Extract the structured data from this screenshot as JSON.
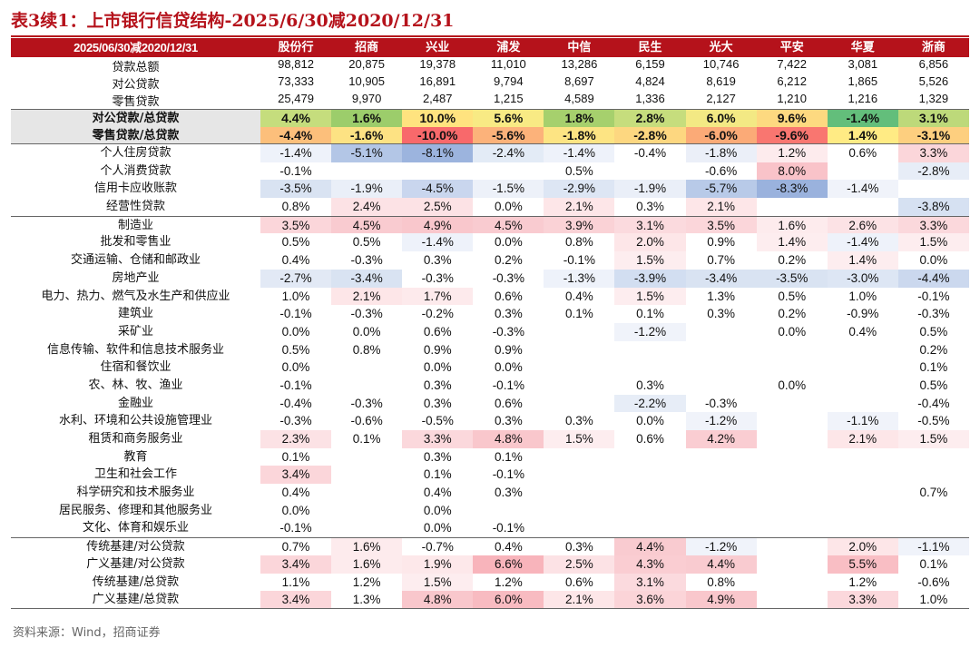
{
  "title": "表3续1：上市银行信贷结构-2025/6/30减2020/12/31",
  "source": "资料来源：Wind，招商证券",
  "header": {
    "label": "2025/06/30减2020/12/31",
    "banks": [
      "股份行",
      "招商",
      "兴业",
      "浦发",
      "中信",
      "民生",
      "光大",
      "平安",
      "华夏",
      "浙商"
    ]
  },
  "colors": {
    "accent": "#b5121b",
    "summary_bg": "#fcf4de",
    "ratio_label_bg": "#e6e6e6"
  },
  "sections": [
    {
      "type": "summary",
      "rows": [
        {
          "label": "贷款总额",
          "values": [
            "98,812",
            "20,875",
            "19,378",
            "11,010",
            "13,286",
            "6,159",
            "10,746",
            "7,422",
            "3,081",
            "6,856"
          ]
        },
        {
          "label": "对公贷款",
          "values": [
            "73,333",
            "10,905",
            "16,891",
            "9,794",
            "8,697",
            "4,824",
            "8,619",
            "6,212",
            "1,865",
            "5,526"
          ]
        },
        {
          "label": "零售贷款",
          "values": [
            "25,479",
            "9,970",
            "2,487",
            "1,215",
            "4,589",
            "1,336",
            "2,127",
            "1,210",
            "1,216",
            "1,329"
          ]
        }
      ]
    },
    {
      "type": "ratio",
      "rows": [
        {
          "label": "对公贷款/总贷款",
          "values": [
            "4.4%",
            "1.6%",
            "10.0%",
            "5.6%",
            "1.8%",
            "2.8%",
            "6.0%",
            "9.6%",
            "-1.4%",
            "3.1%"
          ],
          "colors": [
            "#c5dd7d",
            "#9ccd6b",
            "#ffe37f",
            "#f8ea84",
            "#a6d06d",
            "#c6dd7d",
            "#f3e984",
            "#fdd980",
            "#63be7b",
            "#bdd97a"
          ]
        },
        {
          "label": "零售贷款/总贷款",
          "values": [
            "-4.4%",
            "-1.6%",
            "-10.0%",
            "-5.6%",
            "-1.8%",
            "-2.8%",
            "-6.0%",
            "-9.6%",
            "1.4%",
            "-3.1%"
          ],
          "colors": [
            "#fcbf7b",
            "#fde283",
            "#f8696b",
            "#fcb27a",
            "#fde483",
            "#fdd780",
            "#fbaa77",
            "#f97670",
            "#ffeb84",
            "#fdcf7f"
          ]
        }
      ]
    },
    {
      "type": "body",
      "rows": [
        {
          "label": "个人住房贷款",
          "values": [
            "-1.4%",
            "-5.1%",
            "-8.1%",
            "-2.4%",
            "-1.4%",
            "-0.4%",
            "-1.8%",
            "1.2%",
            "0.6%",
            "3.3%"
          ],
          "colors": [
            "#eef2fa",
            "#b3c6e6",
            "#9cb4de",
            "#e3ebf6",
            "#eef2fa",
            "",
            "#ebeff8",
            "#fdebed",
            "",
            "#fbd6da"
          ]
        },
        {
          "label": "个人消费贷款",
          "values": [
            "-0.1%",
            "",
            "",
            "",
            "0.5%",
            "",
            "-0.6%",
            "8.0%",
            "",
            "-2.8%"
          ],
          "colors": [
            "",
            "",
            "",
            "",
            "",
            "",
            "",
            "#f9c3c9",
            "",
            "#e7edf7"
          ]
        },
        {
          "label": "信用卡应收账款",
          "values": [
            "-3.5%",
            "-1.9%",
            "-4.5%",
            "-1.5%",
            "-2.9%",
            "-1.9%",
            "-5.7%",
            "-8.3%",
            "-1.4%",
            ""
          ],
          "colors": [
            "#d9e3f2",
            "#eaeff8",
            "#c9d6ee",
            "#edf1f9",
            "#dde6f4",
            "#eaeff8",
            "#b8cae8",
            "#9ab2dd",
            "#f0f3fa",
            ""
          ]
        },
        {
          "label": "经营性贷款",
          "values": [
            "0.8%",
            "2.4%",
            "2.5%",
            "0.0%",
            "2.1%",
            "0.3%",
            "2.1%",
            "",
            "",
            "-3.8%"
          ],
          "colors": [
            "",
            "#fce2e5",
            "#fce2e5",
            "",
            "#fde6e8",
            "",
            "#fde6e8",
            "",
            "",
            "#d6e1f2"
          ]
        },
        {
          "label": "制造业",
          "values": [
            "3.5%",
            "4.5%",
            "4.9%",
            "4.5%",
            "3.9%",
            "3.1%",
            "3.5%",
            "1.6%",
            "2.6%",
            "3.3%"
          ],
          "colors": [
            "#fbd6da",
            "#f9cbd0",
            "#f9c7cc",
            "#f9cbd0",
            "#fad2d6",
            "#fbdade",
            "#fbd6da",
            "#fdebed",
            "#fce2e5",
            "#fbd8dc"
          ]
        },
        {
          "label": "批发和零售业",
          "values": [
            "0.5%",
            "0.5%",
            "-1.4%",
            "0.0%",
            "0.8%",
            "2.0%",
            "0.9%",
            "1.4%",
            "-1.4%",
            "1.5%"
          ],
          "colors": [
            "",
            "",
            "#eef2fa",
            "",
            "",
            "#fde6e8",
            "",
            "#fdedef",
            "#eef2fa",
            "#fdedef"
          ]
        },
        {
          "label": "交通运输、仓储和邮政业",
          "values": [
            "0.4%",
            "-0.3%",
            "0.3%",
            "0.2%",
            "-0.1%",
            "1.5%",
            "0.7%",
            "0.2%",
            "1.4%",
            "0.0%"
          ],
          "colors": [
            "",
            "",
            "",
            "",
            "",
            "#fdedef",
            "",
            "",
            "#fdedef",
            ""
          ]
        },
        {
          "label": "房地产业",
          "values": [
            "-2.7%",
            "-3.4%",
            "-0.3%",
            "-0.3%",
            "-1.3%",
            "-3.9%",
            "-3.4%",
            "-3.5%",
            "-3.0%",
            "-4.4%"
          ],
          "colors": [
            "#e2e9f5",
            "#d9e3f2",
            "",
            "",
            "#eef2fa",
            "#d2def1",
            "#d9e3f2",
            "#d9e3f2",
            "#dde6f4",
            "#cbd8ee"
          ]
        },
        {
          "label": "电力、热力、燃气及水生产和供应业",
          "values": [
            "1.0%",
            "2.1%",
            "1.7%",
            "0.6%",
            "0.4%",
            "1.5%",
            "1.3%",
            "0.5%",
            "1.0%",
            "-0.1%"
          ],
          "colors": [
            "",
            "#fde6e8",
            "#fdeaec",
            "",
            "",
            "#fdedef",
            "",
            "",
            "",
            ""
          ]
        },
        {
          "label": "建筑业",
          "values": [
            "-0.1%",
            "-0.3%",
            "-0.2%",
            "0.3%",
            "0.1%",
            "0.1%",
            "0.3%",
            "0.2%",
            "-0.9%",
            "-0.3%"
          ],
          "colors": [
            "",
            "",
            "",
            "",
            "",
            "",
            "",
            "",
            "",
            ""
          ]
        },
        {
          "label": "采矿业",
          "values": [
            "0.0%",
            "0.0%",
            "0.6%",
            "-0.3%",
            "",
            "-1.2%",
            "",
            "0.0%",
            "0.4%",
            "0.5%"
          ],
          "colors": [
            "",
            "",
            "",
            "",
            "",
            "#f0f3fa",
            "",
            "",
            "",
            ""
          ]
        },
        {
          "label": "信息传输、软件和信息技术服务业",
          "values": [
            "0.5%",
            "0.8%",
            "0.9%",
            "0.9%",
            "",
            "",
            "",
            "",
            "",
            "0.2%"
          ],
          "colors": [
            "",
            "",
            "",
            "",
            "",
            "",
            "",
            "",
            "",
            ""
          ]
        },
        {
          "label": "住宿和餐饮业",
          "values": [
            "0.0%",
            "",
            "0.0%",
            "0.0%",
            "",
            "",
            "",
            "",
            "",
            "0.1%"
          ],
          "colors": [
            "",
            "",
            "",
            "",
            "",
            "",
            "",
            "",
            "",
            ""
          ]
        },
        {
          "label": "农、林、牧、渔业",
          "values": [
            "-0.1%",
            "",
            "0.3%",
            "-0.1%",
            "",
            "0.3%",
            "",
            "0.0%",
            "",
            "0.5%"
          ],
          "colors": [
            "",
            "",
            "",
            "",
            "",
            "",
            "",
            "",
            "",
            ""
          ]
        },
        {
          "label": "金融业",
          "values": [
            "-0.4%",
            "-0.3%",
            "0.3%",
            "0.6%",
            "",
            "-2.2%",
            "-0.3%",
            "",
            "",
            "-0.4%"
          ],
          "colors": [
            "",
            "",
            "",
            "",
            "",
            "#e7edf7",
            "",
            "",
            "",
            ""
          ]
        },
        {
          "label": "水利、环境和公共设施管理业",
          "values": [
            "-0.3%",
            "-0.6%",
            "-0.5%",
            "0.3%",
            "0.3%",
            "0.0%",
            "-1.2%",
            "",
            "-1.1%",
            "-0.5%"
          ],
          "colors": [
            "",
            "",
            "",
            "",
            "",
            "",
            "#f0f3fa",
            "",
            "#f0f3fa",
            ""
          ]
        },
        {
          "label": "租赁和商务服务业",
          "values": [
            "2.3%",
            "0.1%",
            "3.3%",
            "4.8%",
            "1.5%",
            "0.6%",
            "4.2%",
            "",
            "2.1%",
            "1.5%"
          ],
          "colors": [
            "#fce2e5",
            "",
            "#fbd8dc",
            "#f9c7cc",
            "#fdedef",
            "",
            "#facdd2",
            "",
            "#fde6e8",
            "#fdedef"
          ]
        },
        {
          "label": "教育",
          "values": [
            "0.1%",
            "",
            "0.3%",
            "0.1%",
            "",
            "",
            "",
            "",
            "",
            ""
          ],
          "colors": [
            "",
            "",
            "",
            "",
            "",
            "",
            "",
            "",
            "",
            ""
          ]
        },
        {
          "label": "卫生和社会工作",
          "values": [
            "3.4%",
            "",
            "0.1%",
            "-0.1%",
            "",
            "",
            "",
            "",
            "",
            ""
          ],
          "colors": [
            "#fbd6da",
            "",
            "",
            "",
            "",
            "",
            "",
            "",
            "",
            ""
          ]
        },
        {
          "label": "科学研究和技术服务业",
          "values": [
            "0.4%",
            "",
            "0.4%",
            "0.3%",
            "",
            "",
            "",
            "",
            "",
            "0.7%"
          ],
          "colors": [
            "",
            "",
            "",
            "",
            "",
            "",
            "",
            "",
            "",
            ""
          ]
        },
        {
          "label": "居民服务、修理和其他服务业",
          "values": [
            "0.0%",
            "",
            "0.0%",
            "",
            "",
            "",
            "",
            "",
            "",
            ""
          ],
          "colors": [
            "",
            "",
            "",
            "",
            "",
            "",
            "",
            "",
            "",
            ""
          ]
        },
        {
          "label": "文化、体育和娱乐业",
          "values": [
            "-0.1%",
            "",
            "0.0%",
            "-0.1%",
            "",
            "",
            "",
            "",
            "",
            ""
          ],
          "colors": [
            "",
            "",
            "",
            "",
            "",
            "",
            "",
            "",
            "",
            ""
          ]
        },
        {
          "label": "传统基建/对公贷款",
          "values": [
            "0.7%",
            "1.6%",
            "-0.7%",
            "0.4%",
            "0.3%",
            "4.4%",
            "-1.2%",
            "",
            "2.0%",
            "-1.1%"
          ],
          "colors": [
            "",
            "#fdebed",
            "",
            "",
            "",
            "#f9cbd0",
            "#f0f3fa",
            "",
            "#fde6e8",
            "#f0f3fa"
          ]
        },
        {
          "label": "广义基建/对公贷款",
          "values": [
            "3.4%",
            "1.6%",
            "1.9%",
            "6.6%",
            "2.5%",
            "4.3%",
            "4.4%",
            "",
            "5.5%",
            "0.1%"
          ],
          "colors": [
            "#fbd6da",
            "#fdebed",
            "#fde8ea",
            "#f8b4bb",
            "#fce2e5",
            "#facdd2",
            "#f9cbd0",
            "",
            "#f9bec4",
            ""
          ]
        },
        {
          "label": "传统基建/总贷款",
          "values": [
            "1.1%",
            "1.2%",
            "1.5%",
            "1.2%",
            "0.6%",
            "3.1%",
            "0.8%",
            "",
            "1.2%",
            "-0.6%"
          ],
          "colors": [
            "",
            "",
            "#fdedef",
            "",
            "",
            "#fbdade",
            "",
            "",
            "",
            ""
          ]
        },
        {
          "label": "广义基建/总贷款",
          "values": [
            "3.4%",
            "1.3%",
            "4.8%",
            "6.0%",
            "2.1%",
            "3.6%",
            "4.9%",
            "",
            "3.3%",
            "1.0%"
          ],
          "colors": [
            "#fbd6da",
            "",
            "#f9c7cc",
            "#f8bbc1",
            "#fde6e8",
            "#fbd4d8",
            "#f9c7cc",
            "",
            "#fbd8dc",
            ""
          ]
        }
      ]
    }
  ]
}
